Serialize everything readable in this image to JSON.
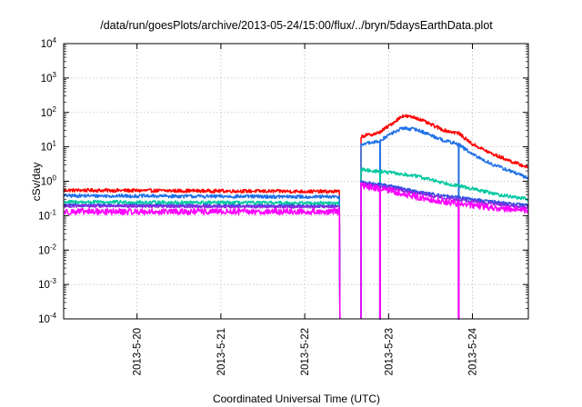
{
  "chart_data": {
    "type": "line",
    "title": "/data/run/goesPlots/archive/2013-05-24/15:00/flux/../bryn/5daysEarthData.plot",
    "xlabel": "Coordinated Universal Time (UTC)",
    "ylabel": "cSv/day",
    "yscale": "log",
    "ylim": [
      0.0001,
      10000
    ],
    "xlim": [
      "2013-05-19 03:00",
      "2013-05-24 16:00"
    ],
    "x_ticks": [
      "2013-5-20",
      "2013-5-21",
      "2013-5-22",
      "2013-5-23",
      "2013-5-24"
    ],
    "y_ticks": [
      {
        "base": "10",
        "exp": "4"
      },
      {
        "base": "10",
        "exp": "3"
      },
      {
        "base": "10",
        "exp": "2"
      },
      {
        "base": "10",
        "exp": "1"
      },
      {
        "base": "10",
        "exp": "0"
      },
      {
        "base": "10",
        "exp": "-1"
      },
      {
        "base": "10",
        "exp": "-2"
      },
      {
        "base": "10",
        "exp": "-3"
      },
      {
        "base": "10",
        "exp": "-4"
      }
    ],
    "grid": true,
    "legend": "none",
    "gaps": [
      {
        "from": "2013-05-22 10:00",
        "to": "2013-05-22 16:00"
      }
    ],
    "dropouts": [
      {
        "at": "2013-05-22 21:30",
        "series": [
          1,
          2,
          3,
          4,
          5
        ]
      },
      {
        "at": "2013-05-23 20:00",
        "series": [
          1,
          3,
          4,
          5
        ]
      }
    ],
    "series": [
      {
        "color": "#ff0000",
        "noise": 0.05,
        "points": [
          [
            "2013-05-19 03:00",
            0.55
          ],
          [
            "2013-05-22 10:00",
            0.5
          ],
          [
            "2013-05-22 16:00",
            20
          ],
          [
            "2013-05-22 21:00",
            25
          ],
          [
            "2013-05-23 00:00",
            40
          ],
          [
            "2013-05-23 04:00",
            80
          ],
          [
            "2013-05-23 08:00",
            70
          ],
          [
            "2013-05-23 12:00",
            45
          ],
          [
            "2013-05-23 16:00",
            30
          ],
          [
            "2013-05-23 20:00",
            25
          ],
          [
            "2013-05-24 00:00",
            12
          ],
          [
            "2013-05-24 06:00",
            6
          ],
          [
            "2013-05-24 12:00",
            3.5
          ],
          [
            "2013-05-24 16:00",
            2.5
          ]
        ]
      },
      {
        "color": "#1f70e8",
        "noise": 0.05,
        "points": [
          [
            "2013-05-19 03:00",
            0.38
          ],
          [
            "2013-05-22 10:00",
            0.35
          ],
          [
            "2013-05-22 16:00",
            12
          ],
          [
            "2013-05-22 21:00",
            14
          ],
          [
            "2013-05-23 00:00",
            22
          ],
          [
            "2013-05-23 04:00",
            35
          ],
          [
            "2013-05-23 08:00",
            32
          ],
          [
            "2013-05-23 12:00",
            22
          ],
          [
            "2013-05-23 16:00",
            15
          ],
          [
            "2013-05-23 20:00",
            12
          ],
          [
            "2013-05-24 00:00",
            6
          ],
          [
            "2013-05-24 06:00",
            3
          ],
          [
            "2013-05-24 12:00",
            1.8
          ],
          [
            "2013-05-24 16:00",
            1.2
          ]
        ]
      },
      {
        "color": "#00c8a0",
        "noise": 0.05,
        "points": [
          [
            "2013-05-19 03:00",
            0.25
          ],
          [
            "2013-05-22 10:00",
            0.23
          ],
          [
            "2013-05-22 16:00",
            2.2
          ],
          [
            "2013-05-23 00:00",
            1.8
          ],
          [
            "2013-05-23 08:00",
            1.4
          ],
          [
            "2013-05-23 16:00",
            0.9
          ],
          [
            "2013-05-24 00:00",
            0.6
          ],
          [
            "2013-05-24 08:00",
            0.4
          ],
          [
            "2013-05-24 16:00",
            0.3
          ]
        ]
      },
      {
        "color": "#3050e0",
        "noise": 0.04,
        "points": [
          [
            "2013-05-19 03:00",
            0.2
          ],
          [
            "2013-05-22 10:00",
            0.19
          ],
          [
            "2013-05-22 16:00",
            0.95
          ],
          [
            "2013-05-23 00:00",
            0.75
          ],
          [
            "2013-05-23 08:00",
            0.5
          ],
          [
            "2013-05-23 16:00",
            0.38
          ],
          [
            "2013-05-24 00:00",
            0.3
          ],
          [
            "2013-05-24 08:00",
            0.24
          ],
          [
            "2013-05-24 16:00",
            0.2
          ]
        ]
      },
      {
        "color": "#8a2be2",
        "noise": 0.04,
        "points": [
          [
            "2013-05-19 03:00",
            0.19
          ],
          [
            "2013-05-22 10:00",
            0.18
          ],
          [
            "2013-05-22 16:00",
            0.85
          ],
          [
            "2013-05-23 00:00",
            0.65
          ],
          [
            "2013-05-23 08:00",
            0.45
          ],
          [
            "2013-05-23 16:00",
            0.33
          ],
          [
            "2013-05-24 00:00",
            0.26
          ],
          [
            "2013-05-24 08:00",
            0.21
          ],
          [
            "2013-05-24 16:00",
            0.17
          ]
        ]
      },
      {
        "color": "#ff00ff",
        "noise": 0.09,
        "points": [
          [
            "2013-05-19 03:00",
            0.13
          ],
          [
            "2013-05-22 10:00",
            0.13
          ],
          [
            "2013-05-22 16:00",
            0.75
          ],
          [
            "2013-05-23 00:00",
            0.55
          ],
          [
            "2013-05-23 08:00",
            0.35
          ],
          [
            "2013-05-23 16:00",
            0.25
          ],
          [
            "2013-05-24 00:00",
            0.2
          ],
          [
            "2013-05-24 08:00",
            0.16
          ],
          [
            "2013-05-24 16:00",
            0.14
          ]
        ]
      }
    ]
  }
}
